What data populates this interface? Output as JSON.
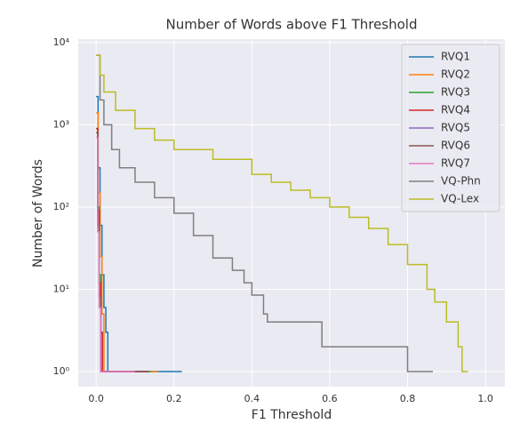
{
  "chart_data": {
    "type": "line",
    "drawstyle": "steps-post",
    "title": "Number of Words above F1 Threshold",
    "x_label": "F1 Threshold",
    "y_label": "Number of Words",
    "yscale": "log",
    "grid": true,
    "legend": "upper right",
    "xlim": [
      -0.046,
      1.05
    ],
    "ylim": [
      0.655,
      11000
    ],
    "xticks": [
      {
        "value": 0,
        "label": "0.0"
      },
      0.2,
      0.4,
      0.6,
      0.8,
      {
        "value": 1,
        "label": "1.0"
      }
    ],
    "yticks": [
      {
        "value": 1,
        "label": "10⁰"
      },
      {
        "value": 10,
        "label": "10¹"
      },
      {
        "value": 100,
        "label": "10²"
      },
      {
        "value": 1000,
        "label": "10³"
      },
      {
        "value": 10000,
        "label": "10⁴"
      }
    ],
    "series": [
      {
        "name": "RVQ1",
        "color": "#1f77b4",
        "x": [
          0,
          0.005,
          0.01,
          0.015,
          0.02,
          0.025,
          0.03,
          0.22
        ],
        "values": [
          2200,
          300,
          60,
          15,
          6,
          3,
          1,
          1
        ]
      },
      {
        "name": "RVQ2",
        "color": "#ff7f0e",
        "x": [
          0,
          0.005,
          0.01,
          0.015,
          0.02,
          0.16
        ],
        "values": [
          1400,
          150,
          25,
          5,
          1,
          1
        ]
      },
      {
        "name": "RVQ3",
        "color": "#2ca02c",
        "x": [
          0,
          0.004,
          0.008,
          0.012,
          0.016,
          0.14
        ],
        "values": [
          900,
          100,
          15,
          3,
          1,
          1
        ]
      },
      {
        "name": "RVQ4",
        "color": "#d62728",
        "x": [
          0,
          0.004,
          0.008,
          0.012,
          0.016,
          0.13
        ],
        "values": [
          900,
          90,
          12,
          3,
          1,
          1
        ]
      },
      {
        "name": "RVQ5",
        "color": "#9467bd",
        "x": [
          0,
          0.004,
          0.008,
          0.012,
          0.135
        ],
        "values": [
          800,
          60,
          8,
          1,
          1
        ]
      },
      {
        "name": "RVQ6",
        "color": "#8c564b",
        "x": [
          0,
          0.004,
          0.008,
          0.012,
          0.135
        ],
        "values": [
          800,
          60,
          8,
          1,
          1
        ]
      },
      {
        "name": "RVQ7",
        "color": "#e377c2",
        "x": [
          0,
          0.004,
          0.008,
          0.012,
          0.1
        ],
        "values": [
          700,
          50,
          6,
          1,
          1
        ]
      },
      {
        "name": "VQ-Phn",
        "color": "#7f7f7f",
        "x": [
          0,
          0.01,
          0.02,
          0.04,
          0.06,
          0.1,
          0.15,
          0.2,
          0.25,
          0.3,
          0.35,
          0.38,
          0.4,
          0.43,
          0.44,
          0.58,
          0.8,
          0.865
        ],
        "values": [
          7000,
          2000,
          1000,
          500,
          300,
          200,
          130,
          84,
          45,
          24,
          17,
          12,
          8.5,
          5,
          4,
          2,
          1,
          1
        ]
      },
      {
        "name": "VQ-Lex",
        "color": "#bcbd22",
        "x": [
          0,
          0.01,
          0.02,
          0.05,
          0.1,
          0.15,
          0.2,
          0.3,
          0.4,
          0.45,
          0.5,
          0.55,
          0.6,
          0.65,
          0.7,
          0.75,
          0.8,
          0.85,
          0.87,
          0.9,
          0.93,
          0.94,
          0.955
        ],
        "values": [
          7000,
          4000,
          2500,
          1500,
          900,
          650,
          500,
          380,
          250,
          200,
          160,
          130,
          100,
          75,
          55,
          35,
          20,
          10,
          7,
          4,
          2,
          1,
          1
        ]
      }
    ]
  }
}
